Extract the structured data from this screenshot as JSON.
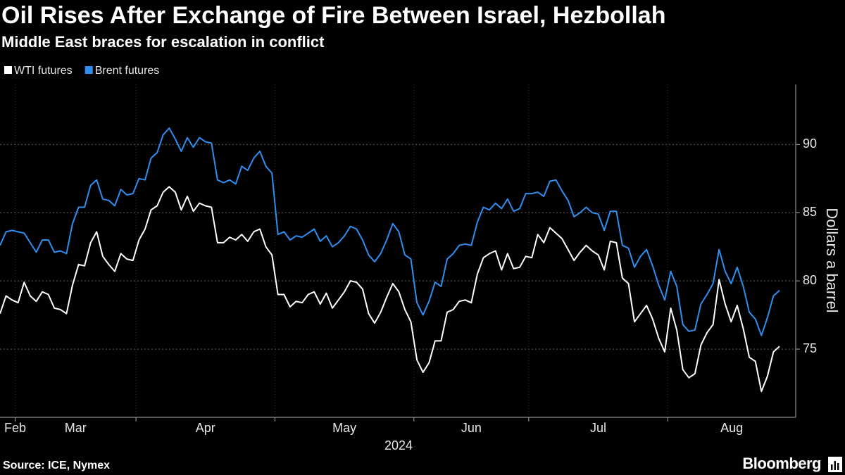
{
  "chart_data": {
    "type": "line",
    "title": "Oil Rises After Exchange of Fire Between Israel, Hezbollah",
    "subtitle": "Middle East braces for escalation in conflict",
    "ylabel": "Dollars a barrel",
    "xlabel": "2024",
    "source": "Source: ICE, Nymex",
    "logo": "Bloomberg",
    "categories": [
      "Feb",
      null,
      null,
      "Mar",
      null,
      null,
      null,
      null,
      null,
      null,
      null,
      null,
      null,
      null,
      null,
      null,
      null,
      null,
      null,
      null,
      null,
      null,
      null,
      "Apr",
      null,
      null,
      null,
      null,
      null,
      null,
      null,
      null,
      null,
      null,
      null,
      null,
      null,
      null,
      null,
      null,
      null,
      null,
      null,
      null,
      null,
      null,
      "May",
      null,
      null,
      null,
      null,
      null,
      null,
      null,
      null,
      null,
      null,
      null,
      null,
      null,
      null,
      null,
      null,
      null,
      null,
      null,
      null,
      null,
      null,
      "Jun",
      null,
      null,
      null,
      null,
      null,
      null,
      null,
      null,
      null,
      null,
      null,
      null,
      null,
      null,
      null,
      null,
      null,
      null,
      "Jul",
      null,
      null,
      null,
      null,
      null,
      null,
      null,
      null,
      null,
      null,
      null,
      null,
      null,
      null,
      null,
      null,
      null,
      null,
      null,
      null,
      null,
      null,
      "Aug",
      null,
      null,
      null,
      null,
      null,
      null,
      null,
      null,
      null,
      null,
      null,
      null,
      null,
      null,
      null,
      null,
      null,
      null
    ],
    "series": [
      {
        "name": "WTI futures",
        "color": "#ffffff",
        "values": [
          77.6,
          78.9,
          78.6,
          78.4,
          79.9,
          78.9,
          78.5,
          79.2,
          79.0,
          78.0,
          77.9,
          77.6,
          79.7,
          81.2,
          81.1,
          82.8,
          83.6,
          81.8,
          81.2,
          80.7,
          82.0,
          81.6,
          81.5,
          83.0,
          83.8,
          85.2,
          85.5,
          86.5,
          86.9,
          86.5,
          85.2,
          86.2,
          85.1,
          85.7,
          85.5,
          85.4,
          82.8,
          82.8,
          83.2,
          83.0,
          83.4,
          82.9,
          83.6,
          83.8,
          82.5,
          81.9,
          79.0,
          79.0,
          78.1,
          78.5,
          78.4,
          79.0,
          79.2,
          78.3,
          79.1,
          78.0,
          78.6,
          79.2,
          80.0,
          79.9,
          79.4,
          77.6,
          76.9,
          77.7,
          78.8,
          79.8,
          79.2,
          77.9,
          77.0,
          74.2,
          73.3,
          74.0,
          75.6,
          75.6,
          77.7,
          77.9,
          78.5,
          78.6,
          78.4,
          80.5,
          81.7,
          82.0,
          82.2,
          80.8,
          82.0,
          80.9,
          81.0,
          81.8,
          81.7,
          83.4,
          82.8,
          83.9,
          83.5,
          83.1,
          82.3,
          81.5,
          82.1,
          82.6,
          82.2,
          81.9,
          80.8,
          82.9,
          82.8,
          80.2,
          79.8,
          77.0,
          77.6,
          78.2,
          77.2,
          75.8,
          74.8,
          78.0,
          76.4,
          73.5,
          72.9,
          73.2,
          75.3,
          76.2,
          76.8,
          80.1,
          78.3,
          77.0,
          78.2,
          76.5,
          74.4,
          74.1,
          71.9,
          73.0,
          74.8,
          75.2
        ]
      },
      {
        "name": "Brent futures",
        "color": "#2e8ff0",
        "values": [
          82.6,
          83.6,
          83.7,
          83.6,
          83.5,
          82.8,
          82.1,
          83.0,
          83.0,
          82.1,
          82.2,
          82.0,
          84.2,
          85.4,
          85.4,
          87.0,
          87.4,
          86.0,
          85.9,
          85.5,
          86.7,
          86.3,
          86.4,
          87.5,
          87.4,
          89.0,
          89.4,
          90.7,
          91.2,
          90.4,
          89.5,
          90.5,
          89.8,
          90.5,
          90.2,
          90.1,
          87.4,
          87.2,
          87.4,
          87.1,
          88.4,
          88.1,
          89.0,
          89.5,
          88.4,
          87.9,
          83.4,
          83.6,
          83.0,
          83.3,
          83.2,
          83.5,
          83.8,
          82.9,
          83.3,
          82.5,
          82.8,
          83.3,
          84.0,
          83.8,
          83.0,
          81.9,
          81.4,
          82.0,
          83.0,
          84.2,
          83.6,
          81.9,
          81.6,
          78.4,
          77.5,
          78.5,
          79.9,
          79.6,
          81.6,
          82.0,
          82.6,
          82.7,
          82.6,
          84.3,
          85.4,
          85.2,
          85.7,
          85.3,
          86.0,
          85.1,
          85.3,
          86.4,
          86.4,
          86.5,
          86.2,
          87.3,
          87.4,
          86.6,
          85.9,
          84.7,
          85.0,
          85.4,
          85.0,
          84.9,
          83.7,
          85.1,
          85.1,
          82.6,
          82.4,
          81.0,
          81.8,
          82.3,
          81.1,
          79.7,
          78.6,
          80.7,
          79.6,
          76.8,
          76.3,
          76.4,
          78.3,
          79.0,
          79.8,
          82.3,
          80.7,
          79.8,
          81.0,
          79.6,
          77.7,
          77.2,
          76.0,
          77.3,
          78.9,
          79.3
        ]
      }
    ],
    "ylim": [
      70,
      94.4
    ],
    "yticks": [
      75,
      80,
      85,
      90
    ],
    "grid": true,
    "legend": "top-left"
  }
}
